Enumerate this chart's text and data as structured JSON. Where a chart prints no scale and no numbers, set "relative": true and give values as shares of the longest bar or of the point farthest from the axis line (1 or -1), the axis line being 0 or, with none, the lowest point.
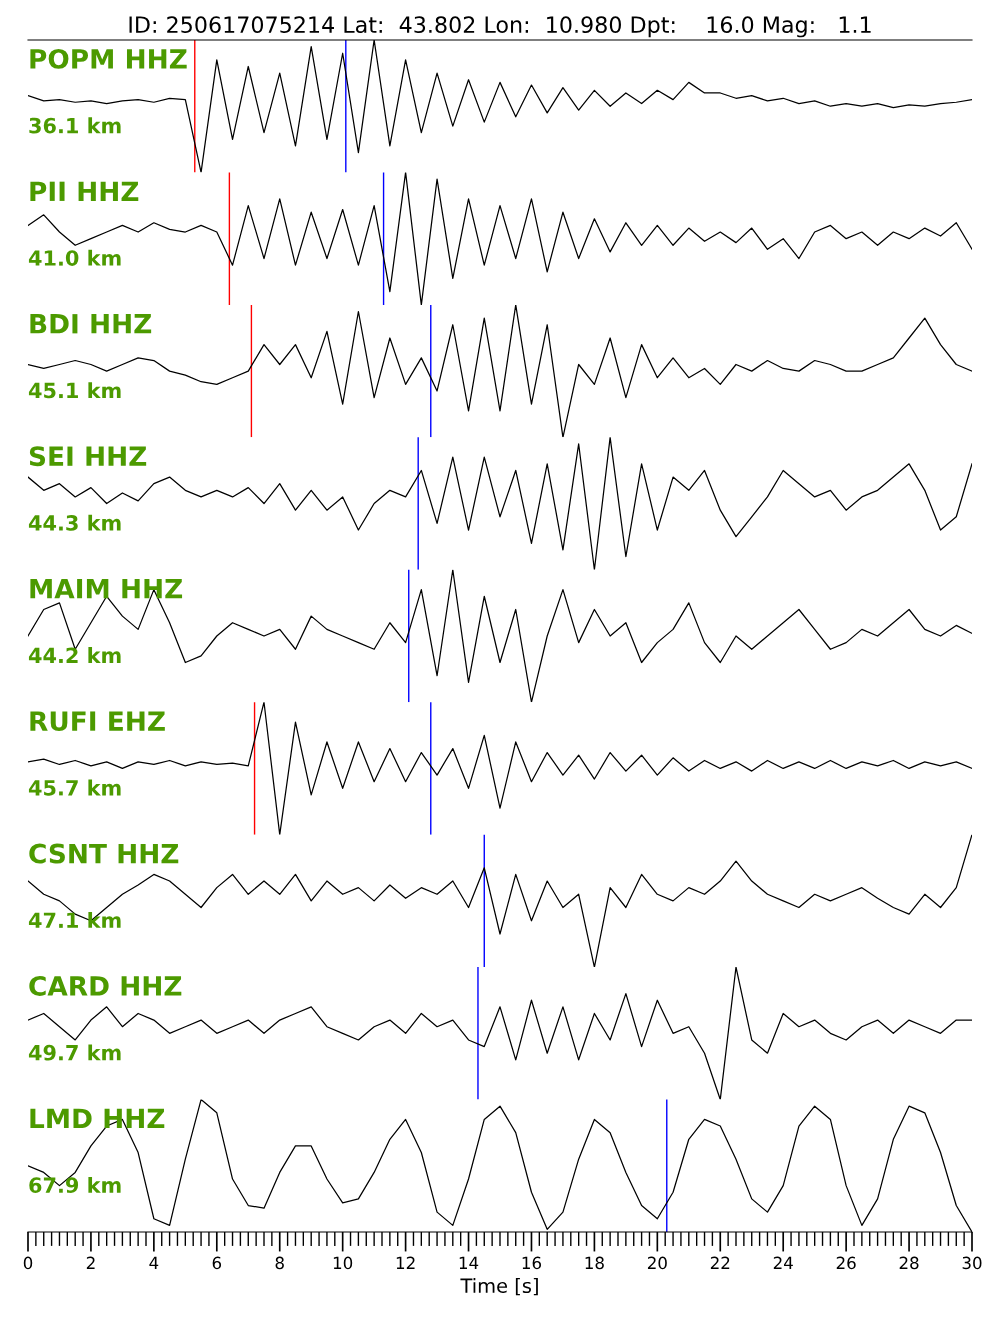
{
  "chart_data": [
    {
      "type": "line",
      "title": "POPM HHZ",
      "subtitle": "36.1 km",
      "annotations": [
        "ID: 250617075214 Lat:  43.802 Lon:  10.980 Dpt:    16.0 Mag:   1.1"
      ],
      "relative": true,
      "color": "#000000",
      "xlim": [
        0,
        30
      ],
      "xticks": [
        0,
        2,
        4,
        6,
        8,
        10,
        12,
        14,
        16,
        18,
        20,
        22,
        24,
        26,
        28,
        30
      ],
      "tick_labels": false,
      "x": [
        0,
        0.5,
        1,
        1.5,
        2,
        2.5,
        3,
        3.5,
        4,
        4.5,
        5,
        5.5,
        6,
        6.5,
        7,
        7.5,
        8,
        8.5,
        9,
        9.5,
        10,
        10.5,
        11,
        11.5,
        12,
        12.5,
        13,
        13.5,
        14,
        14.5,
        15,
        15.5,
        16,
        16.5,
        17,
        17.5,
        18,
        18.5,
        19,
        19.5,
        20,
        20.5,
        21,
        21.5,
        22,
        22.5,
        23,
        23.5,
        24,
        24.5,
        25,
        25.5,
        26,
        26.5,
        27,
        27.5,
        28,
        28.5,
        29,
        29.5,
        30
      ],
      "values": [
        0.58,
        0.54,
        0.55,
        0.53,
        0.54,
        0.52,
        0.54,
        0.55,
        0.53,
        0.56,
        0.55,
        0.0,
        0.85,
        0.25,
        0.8,
        0.3,
        0.75,
        0.2,
        0.95,
        0.25,
        0.9,
        0.15,
        1.0,
        0.2,
        0.85,
        0.3,
        0.75,
        0.35,
        0.7,
        0.38,
        0.68,
        0.42,
        0.66,
        0.45,
        0.64,
        0.47,
        0.62,
        0.5,
        0.6,
        0.52,
        0.62,
        0.55,
        0.68,
        0.6,
        0.6,
        0.56,
        0.58,
        0.54,
        0.56,
        0.52,
        0.54,
        0.5,
        0.52,
        0.5,
        0.52,
        0.49,
        0.51,
        0.5,
        0.52,
        0.53,
        0.55
      ],
      "ref_lines": [
        {
          "axis": "x",
          "value": 5.3,
          "color": "#ff0000"
        },
        {
          "axis": "x",
          "value": 10.1,
          "color": "#0000ff"
        }
      ]
    },
    {
      "type": "line",
      "title": "PII HHZ",
      "subtitle": "41.0 km",
      "relative": true,
      "color": "#000000",
      "xlim": [
        0,
        30
      ],
      "xticks": [
        0,
        2,
        4,
        6,
        8,
        10,
        12,
        14,
        16,
        18,
        20,
        22,
        24,
        26,
        28,
        30
      ],
      "tick_labels": false,
      "x": [
        0,
        0.5,
        1,
        1.5,
        2,
        2.5,
        3,
        3.5,
        4,
        4.5,
        5,
        5.5,
        6,
        6.5,
        7,
        7.5,
        8,
        8.5,
        9,
        9.5,
        10,
        10.5,
        11,
        11.5,
        12,
        12.5,
        13,
        13.5,
        14,
        14.5,
        15,
        15.5,
        16,
        16.5,
        17,
        17.5,
        18,
        18.5,
        19,
        19.5,
        20,
        20.5,
        21,
        21.5,
        22,
        22.5,
        23,
        23.5,
        24,
        24.5,
        25,
        25.5,
        26,
        26.5,
        27,
        27.5,
        28,
        28.5,
        29,
        29.5,
        30
      ],
      "values": [
        0.6,
        0.68,
        0.55,
        0.45,
        0.5,
        0.55,
        0.6,
        0.55,
        0.62,
        0.57,
        0.55,
        0.6,
        0.55,
        0.3,
        0.75,
        0.35,
        0.8,
        0.3,
        0.7,
        0.35,
        0.72,
        0.3,
        0.75,
        0.1,
        1.0,
        0.0,
        0.95,
        0.2,
        0.8,
        0.3,
        0.75,
        0.35,
        0.8,
        0.25,
        0.7,
        0.35,
        0.65,
        0.4,
        0.62,
        0.45,
        0.6,
        0.45,
        0.58,
        0.48,
        0.55,
        0.47,
        0.58,
        0.42,
        0.5,
        0.35,
        0.55,
        0.6,
        0.5,
        0.55,
        0.45,
        0.55,
        0.5,
        0.58,
        0.52,
        0.62,
        0.42
      ],
      "ref_lines": [
        {
          "axis": "x",
          "value": 6.4,
          "color": "#ff0000"
        },
        {
          "axis": "x",
          "value": 11.3,
          "color": "#0000ff"
        }
      ]
    },
    {
      "type": "line",
      "title": "BDI HHZ",
      "subtitle": "45.1 km",
      "relative": true,
      "color": "#000000",
      "xlim": [
        0,
        30
      ],
      "xticks": [
        0,
        2,
        4,
        6,
        8,
        10,
        12,
        14,
        16,
        18,
        20,
        22,
        24,
        26,
        28,
        30
      ],
      "tick_labels": false,
      "x": [
        0,
        0.5,
        1,
        1.5,
        2,
        2.5,
        3,
        3.5,
        4,
        4.5,
        5,
        5.5,
        6,
        6.5,
        7,
        7.5,
        8,
        8.5,
        9,
        9.5,
        10,
        10.5,
        11,
        11.5,
        12,
        12.5,
        13,
        13.5,
        14,
        14.5,
        15,
        15.5,
        16,
        16.5,
        17,
        17.5,
        18,
        18.5,
        19,
        19.5,
        20,
        20.5,
        21,
        21.5,
        22,
        22.5,
        23,
        23.5,
        24,
        24.5,
        25,
        25.5,
        26,
        26.5,
        27,
        27.5,
        28,
        28.5,
        29,
        29.5,
        30
      ],
      "values": [
        0.55,
        0.52,
        0.55,
        0.58,
        0.55,
        0.5,
        0.55,
        0.6,
        0.58,
        0.5,
        0.47,
        0.42,
        0.4,
        0.45,
        0.5,
        0.7,
        0.55,
        0.7,
        0.45,
        0.8,
        0.25,
        0.95,
        0.3,
        0.75,
        0.4,
        0.6,
        0.35,
        0.85,
        0.2,
        0.9,
        0.2,
        1.0,
        0.25,
        0.85,
        0.0,
        0.55,
        0.4,
        0.75,
        0.3,
        0.7,
        0.45,
        0.6,
        0.45,
        0.52,
        0.4,
        0.55,
        0.5,
        0.58,
        0.52,
        0.5,
        0.58,
        0.55,
        0.5,
        0.5,
        0.55,
        0.6,
        0.75,
        0.9,
        0.7,
        0.55,
        0.5
      ],
      "ref_lines": [
        {
          "axis": "x",
          "value": 7.1,
          "color": "#ff0000"
        },
        {
          "axis": "x",
          "value": 12.8,
          "color": "#0000ff"
        }
      ]
    },
    {
      "type": "line",
      "title": "SEI HHZ",
      "subtitle": "44.3 km",
      "relative": true,
      "color": "#000000",
      "xlim": [
        0,
        30
      ],
      "xticks": [
        0,
        2,
        4,
        6,
        8,
        10,
        12,
        14,
        16,
        18,
        20,
        22,
        24,
        26,
        28,
        30
      ],
      "tick_labels": false,
      "x": [
        0,
        0.5,
        1,
        1.5,
        2,
        2.5,
        3,
        3.5,
        4,
        4.5,
        5,
        5.5,
        6,
        6.5,
        7,
        7.5,
        8,
        8.5,
        9,
        9.5,
        10,
        10.5,
        11,
        11.5,
        12,
        12.5,
        13,
        13.5,
        14,
        14.5,
        15,
        15.5,
        16,
        16.5,
        17,
        17.5,
        18,
        18.5,
        19,
        19.5,
        20,
        20.5,
        21,
        21.5,
        22,
        22.5,
        23,
        23.5,
        24,
        24.5,
        25,
        25.5,
        26,
        26.5,
        27,
        27.5,
        28,
        28.5,
        29,
        29.5,
        30
      ],
      "values": [
        0.7,
        0.6,
        0.65,
        0.55,
        0.62,
        0.5,
        0.58,
        0.52,
        0.65,
        0.7,
        0.6,
        0.55,
        0.6,
        0.55,
        0.62,
        0.5,
        0.65,
        0.45,
        0.6,
        0.45,
        0.55,
        0.3,
        0.5,
        0.6,
        0.55,
        0.75,
        0.35,
        0.85,
        0.3,
        0.85,
        0.4,
        0.75,
        0.2,
        0.8,
        0.15,
        0.95,
        0.0,
        1.0,
        0.1,
        0.8,
        0.3,
        0.7,
        0.6,
        0.75,
        0.45,
        0.25,
        0.4,
        0.55,
        0.75,
        0.65,
        0.55,
        0.6,
        0.45,
        0.55,
        0.6,
        0.7,
        0.8,
        0.6,
        0.3,
        0.4,
        0.8
      ],
      "ref_lines": [
        {
          "axis": "x",
          "value": 12.4,
          "color": "#0000ff"
        }
      ]
    },
    {
      "type": "line",
      "title": "MAIM HHZ",
      "subtitle": "44.2 km",
      "relative": true,
      "color": "#000000",
      "xlim": [
        0,
        30
      ],
      "xticks": [
        0,
        2,
        4,
        6,
        8,
        10,
        12,
        14,
        16,
        18,
        20,
        22,
        24,
        26,
        28,
        30
      ],
      "tick_labels": false,
      "x": [
        0,
        0.5,
        1,
        1.5,
        2,
        2.5,
        3,
        3.5,
        4,
        4.5,
        5,
        5.5,
        6,
        6.5,
        7,
        7.5,
        8,
        8.5,
        9,
        9.5,
        10,
        10.5,
        11,
        11.5,
        12,
        12.5,
        13,
        13.5,
        14,
        14.5,
        15,
        15.5,
        16,
        16.5,
        17,
        17.5,
        18,
        18.5,
        19,
        19.5,
        20,
        20.5,
        21,
        21.5,
        22,
        22.5,
        23,
        23.5,
        24,
        24.5,
        25,
        25.5,
        26,
        26.5,
        27,
        27.5,
        28,
        28.5,
        29,
        29.5,
        30
      ],
      "values": [
        0.5,
        0.7,
        0.75,
        0.4,
        0.6,
        0.8,
        0.65,
        0.55,
        0.85,
        0.6,
        0.3,
        0.35,
        0.5,
        0.6,
        0.55,
        0.5,
        0.55,
        0.4,
        0.65,
        0.55,
        0.5,
        0.45,
        0.4,
        0.6,
        0.45,
        0.85,
        0.2,
        1.0,
        0.15,
        0.8,
        0.3,
        0.7,
        0.0,
        0.5,
        0.85,
        0.45,
        0.7,
        0.5,
        0.6,
        0.3,
        0.45,
        0.55,
        0.75,
        0.45,
        0.3,
        0.5,
        0.4,
        0.5,
        0.6,
        0.7,
        0.55,
        0.4,
        0.45,
        0.55,
        0.5,
        0.6,
        0.7,
        0.55,
        0.5,
        0.58,
        0.52
      ],
      "ref_lines": [
        {
          "axis": "x",
          "value": 12.1,
          "color": "#0000ff"
        }
      ]
    },
    {
      "type": "line",
      "title": "RUFI EHZ",
      "subtitle": "45.7 km",
      "relative": true,
      "color": "#000000",
      "xlim": [
        0,
        30
      ],
      "xticks": [
        0,
        2,
        4,
        6,
        8,
        10,
        12,
        14,
        16,
        18,
        20,
        22,
        24,
        26,
        28,
        30
      ],
      "tick_labels": false,
      "x": [
        0,
        0.5,
        1,
        1.5,
        2,
        2.5,
        3,
        3.5,
        4,
        4.5,
        5,
        5.5,
        6,
        6.5,
        7,
        7.5,
        8,
        8.5,
        9,
        9.5,
        10,
        10.5,
        11,
        11.5,
        12,
        12.5,
        13,
        13.5,
        14,
        14.5,
        15,
        15.5,
        16,
        16.5,
        17,
        17.5,
        18,
        18.5,
        19,
        19.5,
        20,
        20.5,
        21,
        21.5,
        22,
        22.5,
        23,
        23.5,
        24,
        24.5,
        25,
        25.5,
        26,
        26.5,
        27,
        27.5,
        28,
        28.5,
        29,
        29.5,
        30
      ],
      "values": [
        0.55,
        0.57,
        0.53,
        0.56,
        0.52,
        0.55,
        0.5,
        0.55,
        0.53,
        0.56,
        0.52,
        0.55,
        0.53,
        0.54,
        0.52,
        1.0,
        0.0,
        0.85,
        0.3,
        0.7,
        0.35,
        0.7,
        0.4,
        0.65,
        0.4,
        0.62,
        0.45,
        0.65,
        0.35,
        0.75,
        0.2,
        0.7,
        0.4,
        0.62,
        0.45,
        0.6,
        0.42,
        0.62,
        0.48,
        0.6,
        0.45,
        0.58,
        0.48,
        0.56,
        0.5,
        0.55,
        0.48,
        0.56,
        0.5,
        0.55,
        0.5,
        0.56,
        0.5,
        0.55,
        0.52,
        0.56,
        0.5,
        0.55,
        0.52,
        0.55,
        0.5
      ],
      "ref_lines": [
        {
          "axis": "x",
          "value": 7.2,
          "color": "#ff0000"
        },
        {
          "axis": "x",
          "value": 12.8,
          "color": "#0000ff"
        }
      ]
    },
    {
      "type": "line",
      "title": "CSNT HHZ",
      "subtitle": "47.1 km",
      "relative": true,
      "color": "#000000",
      "xlim": [
        0,
        30
      ],
      "xticks": [
        0,
        2,
        4,
        6,
        8,
        10,
        12,
        14,
        16,
        18,
        20,
        22,
        24,
        26,
        28,
        30
      ],
      "tick_labels": false,
      "x": [
        0,
        0.5,
        1,
        1.5,
        2,
        2.5,
        3,
        3.5,
        4,
        4.5,
        5,
        5.5,
        6,
        6.5,
        7,
        7.5,
        8,
        8.5,
        9,
        9.5,
        10,
        10.5,
        11,
        11.5,
        12,
        12.5,
        13,
        13.5,
        14,
        14.5,
        15,
        15.5,
        16,
        16.5,
        17,
        17.5,
        18,
        18.5,
        19,
        19.5,
        20,
        20.5,
        21,
        21.5,
        22,
        22.5,
        23,
        23.5,
        24,
        24.5,
        25,
        25.5,
        26,
        26.5,
        27,
        27.5,
        28,
        28.5,
        29,
        29.5,
        30
      ],
      "values": [
        0.65,
        0.55,
        0.5,
        0.4,
        0.35,
        0.45,
        0.55,
        0.62,
        0.7,
        0.65,
        0.55,
        0.45,
        0.6,
        0.7,
        0.55,
        0.65,
        0.55,
        0.7,
        0.5,
        0.65,
        0.55,
        0.6,
        0.5,
        0.62,
        0.52,
        0.6,
        0.55,
        0.65,
        0.45,
        0.75,
        0.25,
        0.7,
        0.35,
        0.65,
        0.45,
        0.55,
        0.0,
        0.6,
        0.45,
        0.7,
        0.55,
        0.5,
        0.6,
        0.55,
        0.65,
        0.8,
        0.65,
        0.55,
        0.5,
        0.45,
        0.55,
        0.5,
        0.55,
        0.6,
        0.52,
        0.45,
        0.4,
        0.55,
        0.45,
        0.6,
        1.0
      ],
      "ref_lines": [
        {
          "axis": "x",
          "value": 14.5,
          "color": "#0000ff"
        }
      ]
    },
    {
      "type": "line",
      "title": "CARD HHZ",
      "subtitle": "49.7 km",
      "relative": true,
      "color": "#000000",
      "xlim": [
        0,
        30
      ],
      "xticks": [
        0,
        2,
        4,
        6,
        8,
        10,
        12,
        14,
        16,
        18,
        20,
        22,
        24,
        26,
        28,
        30
      ],
      "tick_labels": false,
      "x": [
        0,
        0.5,
        1,
        1.5,
        2,
        2.5,
        3,
        3.5,
        4,
        4.5,
        5,
        5.5,
        6,
        6.5,
        7,
        7.5,
        8,
        8.5,
        9,
        9.5,
        10,
        10.5,
        11,
        11.5,
        12,
        12.5,
        13,
        13.5,
        14,
        14.5,
        15,
        15.5,
        16,
        16.5,
        17,
        17.5,
        18,
        18.5,
        19,
        19.5,
        20,
        20.5,
        21,
        21.5,
        22,
        22.5,
        23,
        23.5,
        24,
        24.5,
        25,
        25.5,
        26,
        26.5,
        27,
        27.5,
        28,
        28.5,
        29,
        29.5,
        30
      ],
      "values": [
        0.6,
        0.65,
        0.55,
        0.45,
        0.6,
        0.7,
        0.55,
        0.65,
        0.6,
        0.5,
        0.55,
        0.6,
        0.5,
        0.55,
        0.6,
        0.5,
        0.6,
        0.65,
        0.7,
        0.55,
        0.5,
        0.45,
        0.55,
        0.6,
        0.5,
        0.65,
        0.55,
        0.6,
        0.45,
        0.4,
        0.7,
        0.3,
        0.75,
        0.35,
        0.7,
        0.3,
        0.65,
        0.45,
        0.8,
        0.4,
        0.75,
        0.5,
        0.55,
        0.35,
        0.0,
        1.0,
        0.45,
        0.35,
        0.65,
        0.55,
        0.6,
        0.5,
        0.45,
        0.55,
        0.6,
        0.5,
        0.6,
        0.55,
        0.5,
        0.6,
        0.6
      ],
      "ref_lines": [
        {
          "axis": "x",
          "value": 14.3,
          "color": "#0000ff"
        }
      ]
    },
    {
      "type": "line",
      "title": "LMD HHZ",
      "subtitle": "67.9 km",
      "xlabel": "Time [s]",
      "relative": true,
      "color": "#000000",
      "xlim": [
        0,
        30
      ],
      "xticks": [
        0,
        2,
        4,
        6,
        8,
        10,
        12,
        14,
        16,
        18,
        20,
        22,
        24,
        26,
        28,
        30
      ],
      "tick_labels": "x",
      "x": [
        0,
        0.5,
        1,
        1.5,
        2,
        2.5,
        3,
        3.5,
        4,
        4.5,
        5,
        5.5,
        6,
        6.5,
        7,
        7.5,
        8,
        8.5,
        9,
        9.5,
        10,
        10.5,
        11,
        11.5,
        12,
        12.5,
        13,
        13.5,
        14,
        14.5,
        15,
        15.5,
        16,
        16.5,
        17,
        17.5,
        18,
        18.5,
        19,
        19.5,
        20,
        20.5,
        21,
        21.5,
        22,
        22.5,
        23,
        23.5,
        24,
        24.5,
        25,
        25.5,
        26,
        26.5,
        27,
        27.5,
        28,
        28.5,
        29,
        29.5,
        30
      ],
      "values": [
        0.5,
        0.45,
        0.35,
        0.45,
        0.65,
        0.8,
        0.85,
        0.6,
        0.1,
        0.05,
        0.55,
        1.0,
        0.9,
        0.4,
        0.2,
        0.18,
        0.45,
        0.65,
        0.65,
        0.4,
        0.22,
        0.25,
        0.45,
        0.7,
        0.85,
        0.6,
        0.15,
        0.05,
        0.4,
        0.85,
        0.95,
        0.75,
        0.3,
        0.02,
        0.15,
        0.55,
        0.85,
        0.75,
        0.45,
        0.2,
        0.1,
        0.3,
        0.7,
        0.85,
        0.8,
        0.55,
        0.25,
        0.15,
        0.35,
        0.8,
        0.95,
        0.85,
        0.35,
        0.05,
        0.25,
        0.7,
        0.95,
        0.9,
        0.6,
        0.2,
        0.0
      ],
      "ref_lines": [
        {
          "axis": "x",
          "value": 20.3,
          "color": "#0000ff"
        }
      ]
    }
  ]
}
